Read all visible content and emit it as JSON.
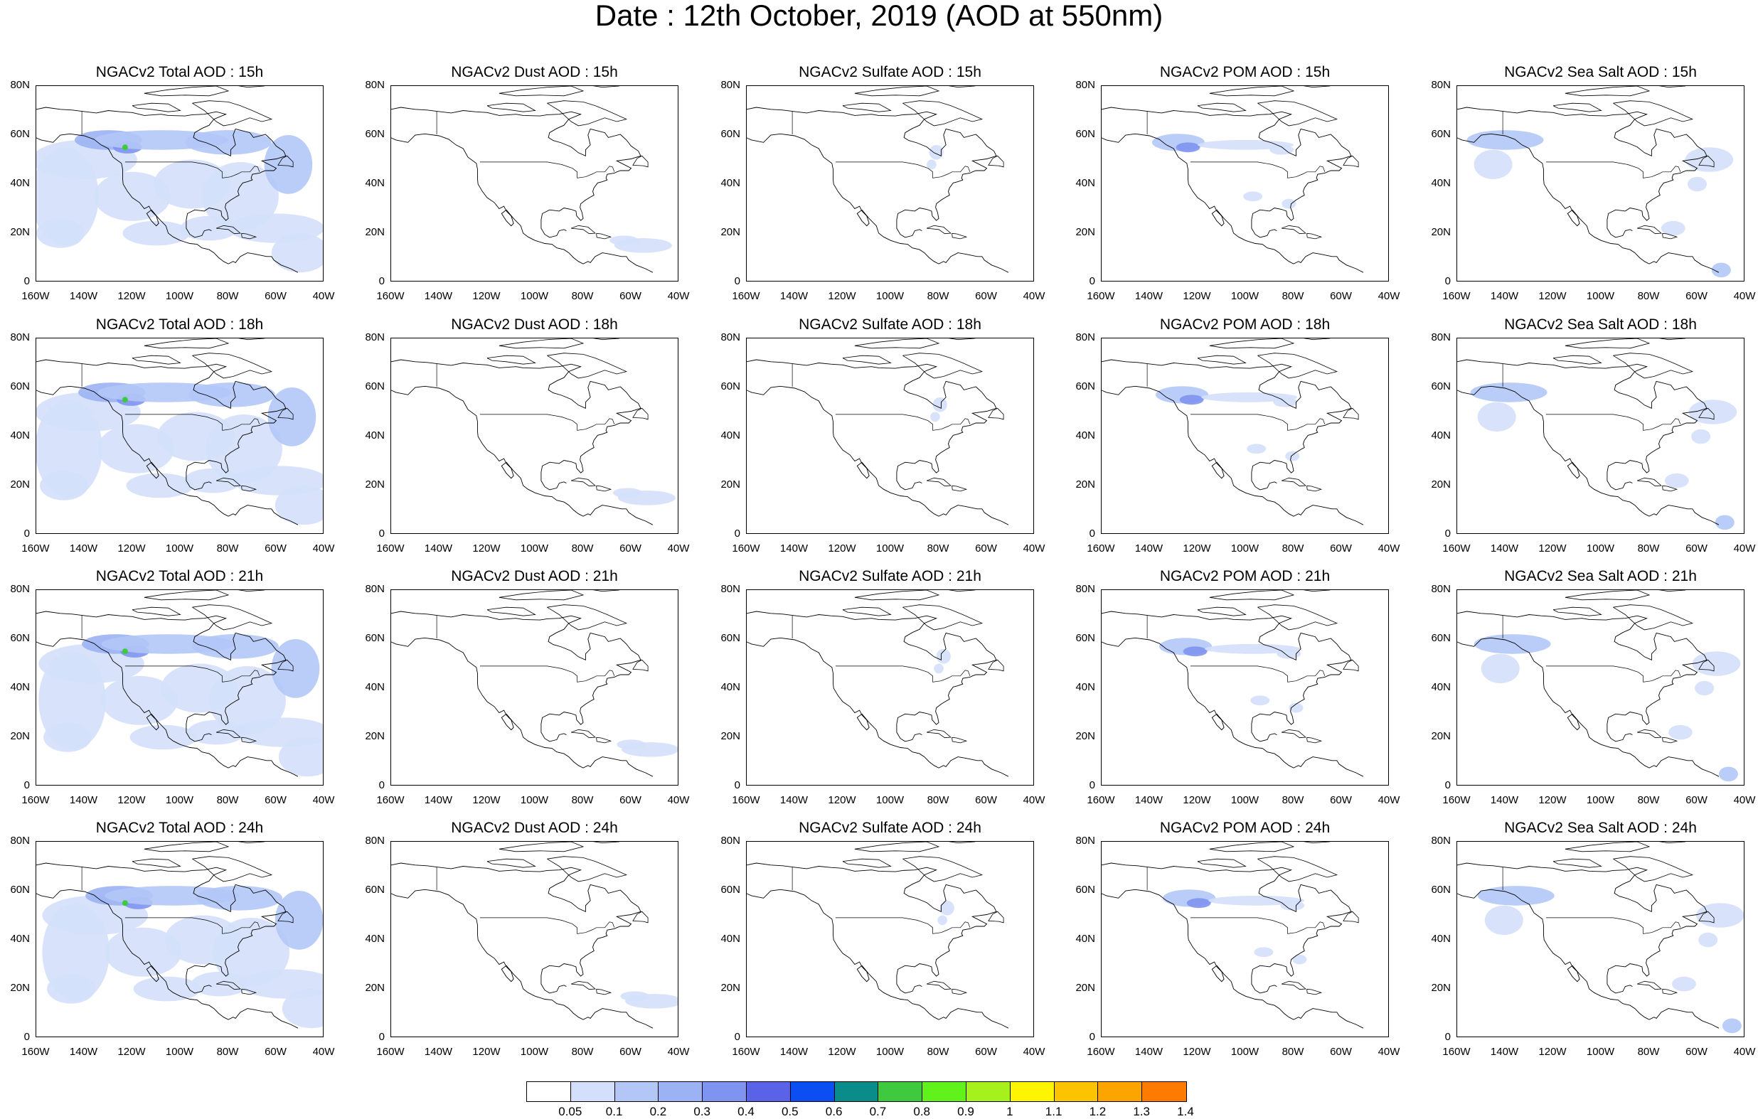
{
  "title": "Date : 12th October, 2019 (AOD at 550nm)",
  "lat_ticks": [
    "80N",
    "60N",
    "40N",
    "20N",
    "0"
  ],
  "lon_ticks": [
    "160W",
    "140W",
    "120W",
    "100W",
    "80W",
    "60W",
    "40W"
  ],
  "panels": [
    [
      "NGACv2 Total AOD : 15h",
      "NGACv2 Dust AOD : 15h",
      "NGACv2 Sulfate AOD : 15h",
      "NGACv2 POM AOD : 15h",
      "NGACv2 Sea Salt AOD : 15h"
    ],
    [
      "NGACv2 Total AOD : 18h",
      "NGACv2 Dust AOD : 18h",
      "NGACv2 Sulfate AOD : 18h",
      "NGACv2 POM AOD : 18h",
      "NGACv2 Sea Salt AOD : 18h"
    ],
    [
      "NGACv2 Total AOD : 21h",
      "NGACv2 Dust AOD : 21h",
      "NGACv2 Sulfate AOD : 21h",
      "NGACv2 POM AOD : 21h",
      "NGACv2 Sea Salt AOD : 21h"
    ],
    [
      "NGACv2 Total AOD : 24h",
      "NGACv2 Dust AOD : 24h",
      "NGACv2 Sulfate AOD : 24h",
      "NGACv2 POM AOD : 24h",
      "NGACv2 Sea Salt  AOD : 24h"
    ]
  ],
  "colorbar": {
    "labels": [
      "0.05",
      "0.1",
      "0.2",
      "0.3",
      "0.4",
      "0.5",
      "0.6",
      "0.7",
      "0.8",
      "0.9",
      "1",
      "1.1",
      "1.2",
      "1.3",
      "1.4"
    ],
    "colors": [
      "#ffffff",
      "#d4e0fb",
      "#b3c7f7",
      "#9bb3f4",
      "#7f94f0",
      "#5a63e8",
      "#0b4ff2",
      "#0a8c8a",
      "#3ec93e",
      "#60f21a",
      "#a6f01c",
      "#c8f04a",
      "#fff500",
      "#fcc300",
      "#fca500",
      "#fc7b00",
      "#fc2a1e"
    ]
  }
}
